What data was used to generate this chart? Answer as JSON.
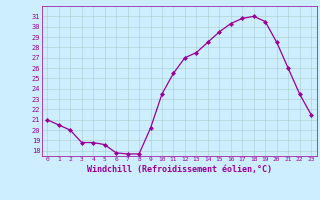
{
  "hours": [
    0,
    1,
    2,
    3,
    4,
    5,
    6,
    7,
    8,
    9,
    10,
    11,
    12,
    13,
    14,
    15,
    16,
    17,
    18,
    19,
    20,
    21,
    22,
    23
  ],
  "values": [
    21.0,
    20.5,
    20.0,
    18.8,
    18.8,
    18.6,
    17.8,
    17.7,
    17.7,
    20.2,
    23.5,
    25.5,
    27.0,
    27.5,
    28.5,
    29.5,
    30.3,
    30.8,
    31.0,
    30.5,
    28.5,
    26.0,
    23.5,
    21.5
  ],
  "line_color": "#990099",
  "marker": "D",
  "marker_size": 2.0,
  "bg_color": "#cceeff",
  "grid_color": "#aacccc",
  "xlabel": "Windchill (Refroidissement éolien,°C)",
  "xlabel_color": "#990099",
  "tick_color": "#990099",
  "ylim": [
    17.5,
    32.0
  ],
  "yticks": [
    18,
    19,
    20,
    21,
    22,
    23,
    24,
    25,
    26,
    27,
    28,
    29,
    30,
    31
  ],
  "xlim": [
    -0.5,
    23.5
  ]
}
